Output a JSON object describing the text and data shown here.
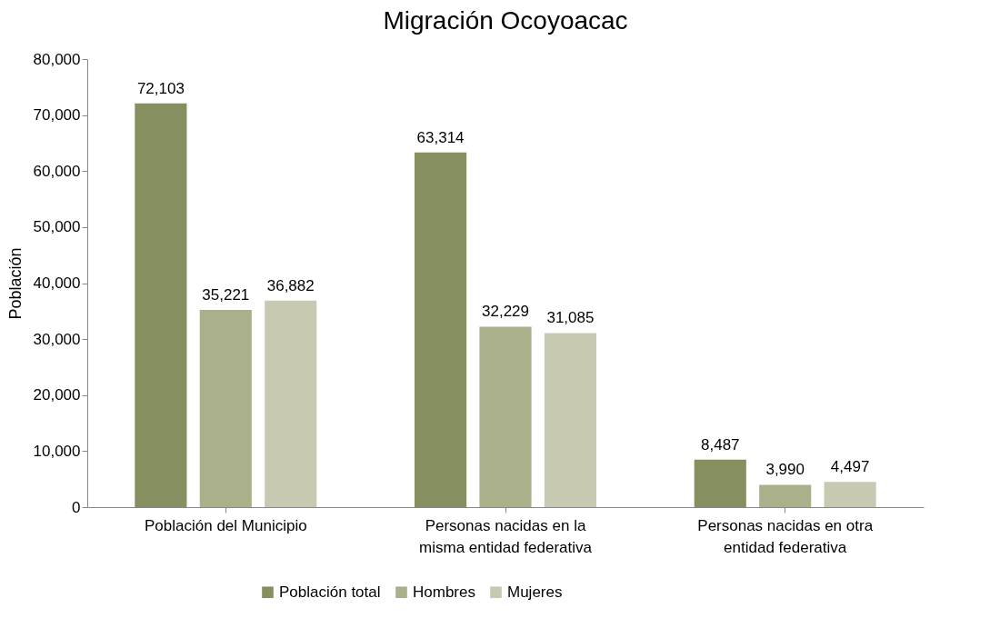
{
  "chart_data": {
    "type": "bar",
    "title": "Migración Ocoyoacac",
    "ylabel": "Población",
    "categories": [
      "Población del Municipio",
      "Personas nacidas en la misma entidad federativa",
      "Personas nacidas en otra entidad federativa"
    ],
    "series": [
      {
        "name": "Población total",
        "color": "#868f60",
        "values": [
          72103,
          63314,
          8487
        ],
        "value_labels": [
          "72,103",
          "63,314",
          "8,487"
        ]
      },
      {
        "name": "Hombres",
        "color": "#aab08a",
        "values": [
          35221,
          32229,
          3990
        ],
        "value_labels": [
          "35,221",
          "32,229",
          "3,990"
        ]
      },
      {
        "name": "Mujeres",
        "color": "#c7cab0",
        "values": [
          36882,
          31085,
          4497
        ],
        "value_labels": [
          "36,882",
          "31,085",
          "4,497"
        ]
      }
    ],
    "ylim": [
      0,
      80000
    ],
    "yticks": [
      0,
      {
        "value": 10000,
        "label": "10,000"
      },
      {
        "value": 20000,
        "label": "20,000"
      },
      {
        "value": 30000,
        "label": "30,000"
      },
      {
        "value": 40000,
        "label": "40,000"
      },
      {
        "value": 50000,
        "label": "50,000"
      },
      {
        "value": 60000,
        "label": "60,000"
      },
      {
        "value": 70000,
        "label": "70,000"
      },
      {
        "value": 80000,
        "label": "80,000"
      }
    ],
    "grid": false,
    "legend": "bottom"
  }
}
